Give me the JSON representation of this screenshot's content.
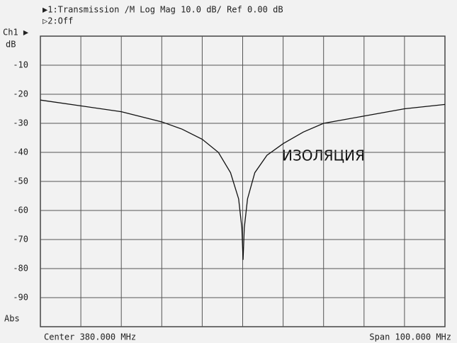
{
  "chart_data": {
    "type": "line",
    "header": [
      "▶1:Transmission /M Log Mag 10.0 dB/ Ref 0.00 dB",
      "▷2:Off"
    ],
    "channel_label": "Ch1 ▶",
    "y_unit": "dB",
    "scale_label": "Abs",
    "footer_left": "Center 380.000 MHz",
    "footer_right": "Span 100.000 MHz",
    "annotation": "ИЗОЛЯЦИЯ",
    "xlim": [
      330,
      430
    ],
    "xticks": [
      340,
      350,
      360,
      370,
      380,
      390,
      400,
      410,
      420
    ],
    "ylim": [
      -100,
      0
    ],
    "yticks": [
      -10,
      -20,
      -30,
      -40,
      -50,
      -60,
      -70,
      -80,
      -90
    ],
    "grid": true,
    "series": [
      {
        "color": "#111111",
        "x": [
          330,
          340,
          350,
          360,
          365,
          370,
          374,
          377,
          379,
          379.8,
          380.1,
          380.4,
          381.2,
          383,
          386,
          390,
          395,
          400,
          410,
          420,
          430
        ],
        "values": [
          -22,
          -24,
          -26,
          -29.5,
          -32,
          -35.5,
          -40,
          -47,
          -56,
          -66,
          -77,
          -66,
          -56,
          -47,
          -41,
          -37,
          -33,
          -30,
          -27.5,
          -25,
          -23.5
        ]
      }
    ]
  }
}
